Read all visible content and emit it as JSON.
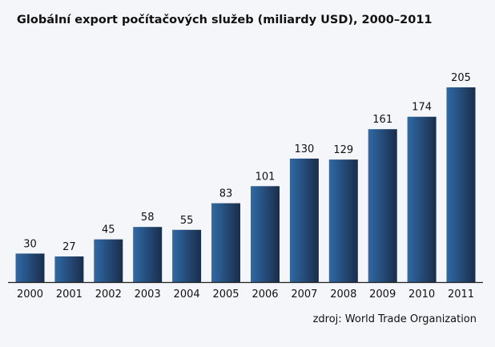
{
  "chart_data": {
    "type": "bar",
    "title": "Globální export počítačových služeb (miliardy USD), 2000–2011",
    "categories": [
      "2000",
      "2001",
      "2002",
      "2003",
      "2004",
      "2005",
      "2006",
      "2007",
      "2008",
      "2009",
      "2010",
      "2011"
    ],
    "values": [
      30,
      27,
      45,
      58,
      55,
      83,
      101,
      130,
      129,
      161,
      174,
      205
    ],
    "data_labels": [
      "30",
      "27",
      "45",
      "58",
      "55",
      "83",
      "101",
      "130",
      "129",
      "161",
      "174",
      "205"
    ],
    "xlabel": "",
    "ylabel": "",
    "ylim": [
      0,
      205
    ],
    "grid": false,
    "legend": "none",
    "colors": {
      "bar_light": "#2f6aa6",
      "bar_dark": "#1a2d4a",
      "axis": "#222222",
      "background": "#f4f6f9"
    }
  },
  "source": "zdroj:  World Trade Organization"
}
